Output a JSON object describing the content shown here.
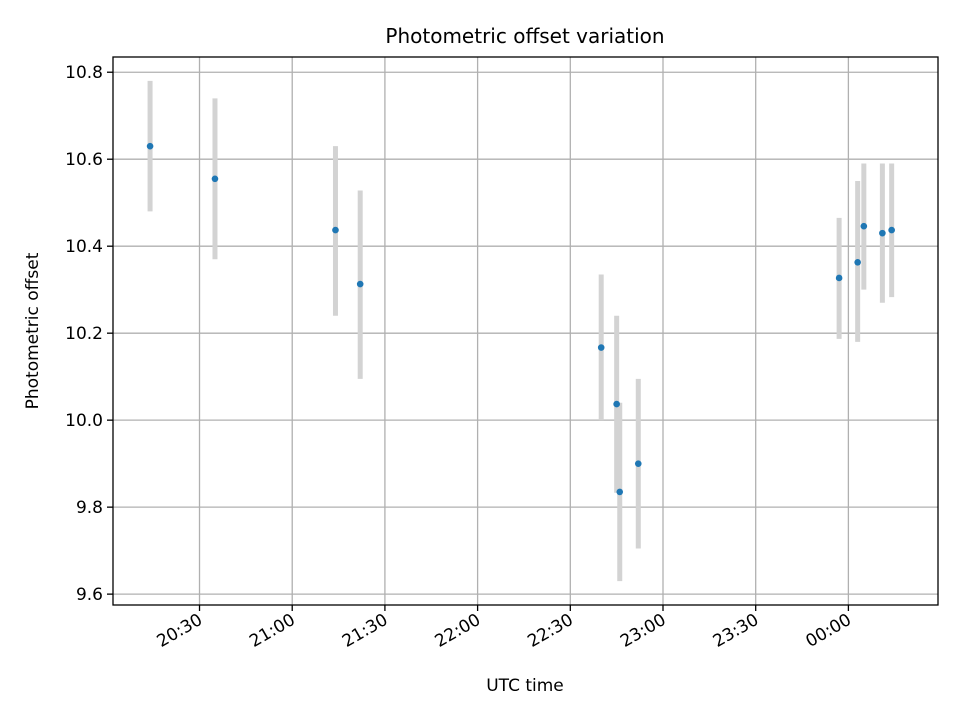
{
  "chart_data": {
    "type": "scatter",
    "title": "Photometric offset variation",
    "xlabel": "UTC time",
    "ylabel": "Photometric offset",
    "xlim": [
      "20:02",
      "00:29"
    ],
    "ylim": [
      9.575,
      10.835
    ],
    "x_ticks": [
      "20:30",
      "21:00",
      "21:30",
      "22:00",
      "22:30",
      "23:00",
      "23:30",
      "00:00"
    ],
    "y_ticks": [
      9.6,
      9.8,
      10.0,
      10.2,
      10.4,
      10.6,
      10.8
    ],
    "y_tick_labels": [
      "9.6",
      "9.8",
      "10.0",
      "10.2",
      "10.4",
      "10.6",
      "10.8"
    ],
    "grid": true,
    "points": [
      {
        "x": "20:14",
        "y": 10.63,
        "y_low": 10.48,
        "y_high": 10.78
      },
      {
        "x": "20:35",
        "y": 10.555,
        "y_low": 10.37,
        "y_high": 10.74
      },
      {
        "x": "21:14",
        "y": 10.437,
        "y_low": 10.24,
        "y_high": 10.63
      },
      {
        "x": "21:22",
        "y": 10.313,
        "y_low": 10.095,
        "y_high": 10.528
      },
      {
        "x": "22:40",
        "y": 10.167,
        "y_low": 10.0,
        "y_high": 10.335
      },
      {
        "x": "22:45",
        "y": 10.037,
        "y_low": 9.833,
        "y_high": 10.24
      },
      {
        "x": "22:46",
        "y": 9.835,
        "y_low": 9.63,
        "y_high": 10.04
      },
      {
        "x": "22:52",
        "y": 9.9,
        "y_low": 9.705,
        "y_high": 10.095
      },
      {
        "x": "23:57",
        "y": 10.327,
        "y_low": 10.187,
        "y_high": 10.465
      },
      {
        "x": "00:03",
        "y": 10.363,
        "y_low": 10.18,
        "y_high": 10.55
      },
      {
        "x": "00:05",
        "y": 10.446,
        "y_low": 10.3,
        "y_high": 10.59
      },
      {
        "x": "00:11",
        "y": 10.43,
        "y_low": 10.27,
        "y_high": 10.59
      },
      {
        "x": "00:14",
        "y": 10.437,
        "y_low": 10.283,
        "y_high": 10.59
      }
    ],
    "colors": {
      "point": "#1f77b4",
      "errorbar": "#d3d3d3",
      "grid": "#b0b0b0",
      "axes": "#000000"
    }
  }
}
